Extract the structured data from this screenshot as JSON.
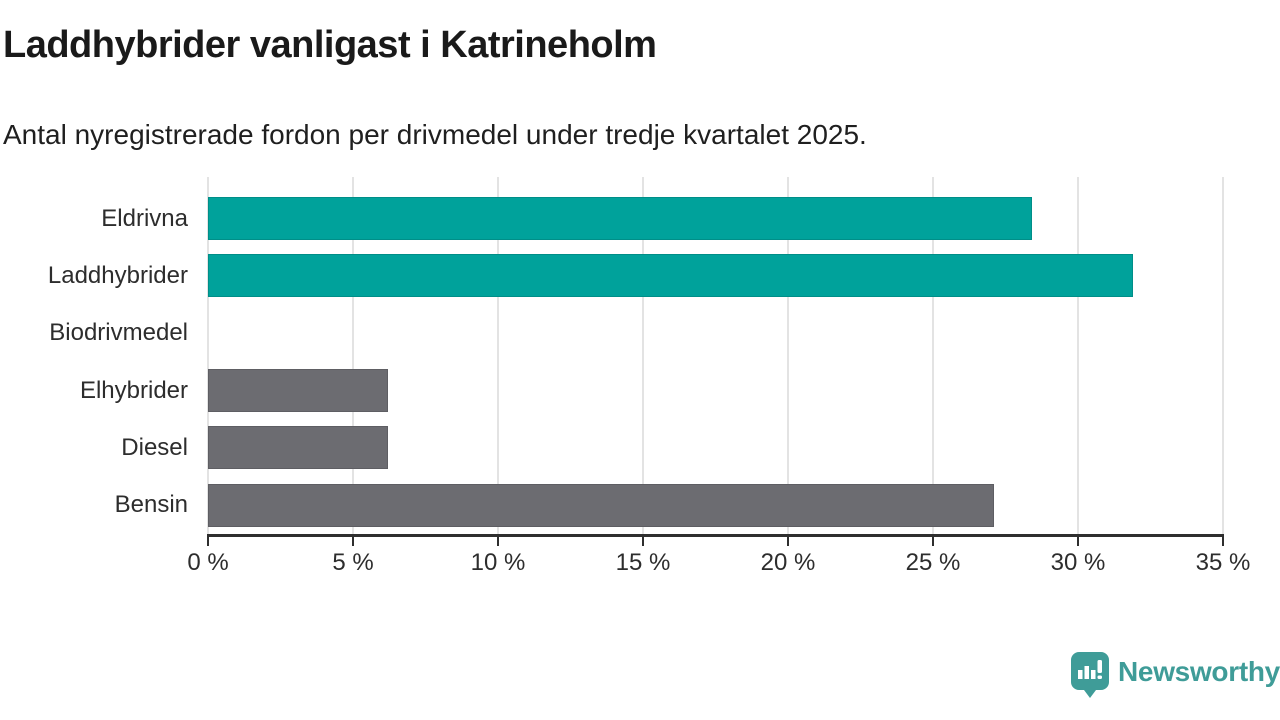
{
  "title": "Laddhybrider vanligast i Katrineholm",
  "subtitle": "Antal nyregistrerade fordon per drivmedel under tredje kvartalet 2025.",
  "chart_data": {
    "type": "bar",
    "orientation": "horizontal",
    "title": "Laddhybrider vanligast i Katrineholm",
    "subtitle": "Antal nyregistrerade fordon per drivmedel under tredje kvartalet 2025.",
    "categories": [
      "Eldrivna",
      "Laddhybrider",
      "Biodrivmedel",
      "Elhybrider",
      "Diesel",
      "Bensin"
    ],
    "values": [
      28.4,
      31.9,
      0,
      6.2,
      6.2,
      27.1
    ],
    "unit": "%",
    "bar_colors": [
      "#00a29b",
      "#00a29b",
      "#6c6c71",
      "#6c6c71",
      "#6c6c71",
      "#6c6c71"
    ],
    "highlight_color": "#00a29b",
    "default_color": "#6c6c71",
    "xlim": [
      0,
      35
    ],
    "x_tick_values": [
      0,
      5,
      10,
      15,
      20,
      25,
      30,
      35
    ],
    "x_ticks": [
      "0 %",
      "5 %",
      "10 %",
      "15 %",
      "20 %",
      "25 %",
      "30 %",
      "35 %"
    ],
    "grid": true,
    "grid_color": "#e3e3e3",
    "axis_color": "#2e2e2e",
    "legend": "none"
  },
  "footer": {
    "brand": "Newsworthy",
    "brand_color": "#3f9c98",
    "logo_icon": "newsworthy-speech-bubble-bar-chart-icon"
  }
}
